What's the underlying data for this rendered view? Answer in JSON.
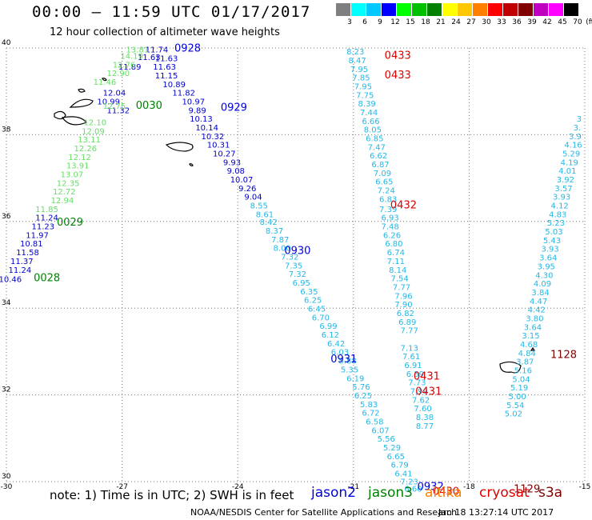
{
  "header": {
    "title": "00:00 – 11:59 UTC 01/17/2017",
    "subtitle": "12 hour collection of altimeter wave heights"
  },
  "legend": {
    "unit": "(ft)",
    "bins": [
      {
        "label": "3",
        "color": "#7f7f7f"
      },
      {
        "label": "6",
        "color": "#00ffff"
      },
      {
        "label": "9",
        "color": "#00c8ff"
      },
      {
        "label": "12",
        "color": "#0000ff"
      },
      {
        "label": "15",
        "color": "#00ff00"
      },
      {
        "label": "18",
        "color": "#00c000"
      },
      {
        "label": "21",
        "color": "#008000"
      },
      {
        "label": "24",
        "color": "#ffff00"
      },
      {
        "label": "27",
        "color": "#ffc800"
      },
      {
        "label": "30",
        "color": "#ff8000"
      },
      {
        "label": "33",
        "color": "#ff0000"
      },
      {
        "label": "36",
        "color": "#c00000"
      },
      {
        "label": "39",
        "color": "#800000"
      },
      {
        "label": "42",
        "color": "#c000c0"
      },
      {
        "label": "45",
        "color": "#ff00ff"
      },
      {
        "label": "70",
        "color": "#000000"
      }
    ]
  },
  "axes": {
    "lon_labels": [
      "-30",
      "-27",
      "-24",
      "-21",
      "-18",
      "-15"
    ],
    "lat_labels": [
      "40",
      "38",
      "36",
      "34",
      "32",
      "30"
    ],
    "lon_range": [
      -30,
      -15
    ],
    "lat_range": [
      30,
      40
    ]
  },
  "colors": {
    "jason2": "#0000dd",
    "jason3": "#008000",
    "altika": "#ff8000",
    "cryosat": "#dd0000",
    "s3a": "#800000",
    "light_green": "#66dd66",
    "cyan": "#22c8f0"
  },
  "tracks": [
    {
      "sat": "jason2",
      "color": "#0000cc",
      "points": [
        {
          "lon": -29.9,
          "lat": 34.6,
          "v": "10.46"
        },
        {
          "lon": -29.65,
          "lat": 34.82,
          "v": "11.24"
        },
        {
          "lon": -29.6,
          "lat": 35.02,
          "v": "11.37"
        },
        {
          "lon": -29.45,
          "lat": 35.22,
          "v": "11.58"
        },
        {
          "lon": -29.35,
          "lat": 35.42,
          "v": "10.81"
        },
        {
          "lon": -29.2,
          "lat": 35.62,
          "v": "11.97"
        },
        {
          "lon": -29.05,
          "lat": 35.82,
          "v": "11.23"
        },
        {
          "lon": -28.95,
          "lat": 36.02,
          "v": "11.24"
        },
        {
          "lon": -27.1,
          "lat": 38.5,
          "v": "11.32"
        },
        {
          "lon": -27.35,
          "lat": 38.7,
          "v": "10.99"
        },
        {
          "lon": -27.2,
          "lat": 38.9,
          "v": "12.04"
        },
        {
          "lon": -26.8,
          "lat": 39.5,
          "v": "11.89"
        },
        {
          "lon": -26.3,
          "lat": 39.72,
          "v": "11.63"
        },
        {
          "lon": -26.1,
          "lat": 39.9,
          "v": "11.74"
        },
        {
          "lon": -25.85,
          "lat": 39.7,
          "v": "11.63"
        },
        {
          "lon": -25.9,
          "lat": 39.5,
          "v": "11.63"
        },
        {
          "lon": -25.85,
          "lat": 39.3,
          "v": "11.15"
        },
        {
          "lon": -25.65,
          "lat": 39.1,
          "v": "10.89"
        },
        {
          "lon": -25.4,
          "lat": 38.9,
          "v": "11.82"
        },
        {
          "lon": -25.15,
          "lat": 38.7,
          "v": "10.97"
        },
        {
          "lon": -25.05,
          "lat": 38.5,
          "v": "9.89"
        },
        {
          "lon": -24.95,
          "lat": 38.3,
          "v": "10.13"
        },
        {
          "lon": -24.8,
          "lat": 38.1,
          "v": "10.14"
        },
        {
          "lon": -24.65,
          "lat": 37.9,
          "v": "10.32"
        },
        {
          "lon": -24.5,
          "lat": 37.7,
          "v": "10.31"
        },
        {
          "lon": -24.35,
          "lat": 37.5,
          "v": "10.27"
        },
        {
          "lon": -24.15,
          "lat": 37.3,
          "v": "9.93"
        },
        {
          "lon": -24.05,
          "lat": 37.1,
          "v": "9.08"
        },
        {
          "lon": -23.9,
          "lat": 36.9,
          "v": "10.07"
        },
        {
          "lon": -23.75,
          "lat": 36.7,
          "v": "9.26"
        },
        {
          "lon": -23.6,
          "lat": 36.5,
          "v": "9.04"
        }
      ]
    },
    {
      "sat": "jason3",
      "color": "#66dd66",
      "points": [
        {
          "lon": -28.95,
          "lat": 36.22,
          "v": "11.85"
        },
        {
          "lon": -28.55,
          "lat": 36.42,
          "v": "12.94"
        },
        {
          "lon": -28.5,
          "lat": 36.62,
          "v": "12.72"
        },
        {
          "lon": -28.4,
          "lat": 36.82,
          "v": "12.35"
        },
        {
          "lon": -28.3,
          "lat": 37.02,
          "v": "13.07"
        },
        {
          "lon": -28.15,
          "lat": 37.22,
          "v": "13.91"
        },
        {
          "lon": -28.1,
          "lat": 37.42,
          "v": "12.12"
        },
        {
          "lon": -27.95,
          "lat": 37.62,
          "v": "12.26"
        },
        {
          "lon": -27.85,
          "lat": 37.82,
          "v": "13.11"
        },
        {
          "lon": -27.75,
          "lat": 38.02,
          "v": "12.09"
        },
        {
          "lon": -27.7,
          "lat": 38.22,
          "v": "12.10"
        },
        {
          "lon": -27.45,
          "lat": 39.15,
          "v": "11.46"
        },
        {
          "lon": -27.2,
          "lat": 38.6,
          "v": "12.75"
        },
        {
          "lon": -27.1,
          "lat": 39.35,
          "v": "12.90"
        },
        {
          "lon": -26.95,
          "lat": 39.55,
          "v": "12.76"
        },
        {
          "lon": -26.75,
          "lat": 39.75,
          "v": "14.19"
        },
        {
          "lon": -26.6,
          "lat": 39.9,
          "v": "13.81"
        }
      ]
    },
    {
      "sat": "jason2-cyan",
      "color": "#22b8e8",
      "points": [
        {
          "lon": -23.45,
          "lat": 36.3,
          "v": "8.55"
        },
        {
          "lon": -23.3,
          "lat": 36.1,
          "v": "8.61"
        },
        {
          "lon": -23.2,
          "lat": 35.92,
          "v": "8.42"
        },
        {
          "lon": -23.05,
          "lat": 35.72,
          "v": "8.37"
        },
        {
          "lon": -22.9,
          "lat": 35.52,
          "v": "7.87"
        },
        {
          "lon": -22.85,
          "lat": 35.32,
          "v": "8.00"
        },
        {
          "lon": -22.65,
          "lat": 35.12,
          "v": "7.32"
        },
        {
          "lon": -22.55,
          "lat": 34.92,
          "v": "7.35"
        },
        {
          "lon": -22.45,
          "lat": 34.72,
          "v": "7.32"
        },
        {
          "lon": -22.35,
          "lat": 34.52,
          "v": "6.95"
        },
        {
          "lon": -22.15,
          "lat": 34.32,
          "v": "6.35"
        },
        {
          "lon": -22.05,
          "lat": 34.12,
          "v": "6.25"
        },
        {
          "lon": -21.95,
          "lat": 33.92,
          "v": "6.45"
        },
        {
          "lon": -21.85,
          "lat": 33.72,
          "v": "6.70"
        },
        {
          "lon": -21.65,
          "lat": 33.52,
          "v": "6.99"
        },
        {
          "lon": -21.6,
          "lat": 33.32,
          "v": "6.12"
        },
        {
          "lon": -21.45,
          "lat": 33.12,
          "v": "6.42"
        },
        {
          "lon": -21.35,
          "lat": 32.92,
          "v": "6.03"
        },
        {
          "lon": -21.15,
          "lat": 32.72,
          "v": "5.88"
        },
        {
          "lon": -21.1,
          "lat": 32.52,
          "v": "5.35"
        },
        {
          "lon": -20.95,
          "lat": 32.32,
          "v": "6.19"
        },
        {
          "lon": -20.8,
          "lat": 32.12,
          "v": "5.76"
        },
        {
          "lon": -20.75,
          "lat": 31.92,
          "v": "6.25"
        },
        {
          "lon": -20.6,
          "lat": 31.72,
          "v": "5.83"
        },
        {
          "lon": -20.55,
          "lat": 31.52,
          "v": "6.72"
        },
        {
          "lon": -20.45,
          "lat": 31.32,
          "v": "6.58"
        },
        {
          "lon": -20.3,
          "lat": 31.12,
          "v": "6.07"
        },
        {
          "lon": -20.15,
          "lat": 30.92,
          "v": "5.56"
        },
        {
          "lon": -20.0,
          "lat": 30.72,
          "v": "5.29"
        },
        {
          "lon": -19.9,
          "lat": 30.52,
          "v": "6.65"
        },
        {
          "lon": -19.8,
          "lat": 30.32,
          "v": "6.79"
        },
        {
          "lon": -19.7,
          "lat": 30.12,
          "v": "6.41"
        },
        {
          "lon": -19.55,
          "lat": 29.94,
          "v": "7.23"
        },
        {
          "lon": -19.45,
          "lat": 29.77,
          "v": "6.60"
        }
      ]
    },
    {
      "sat": "cyan-north",
      "color": "#22b8e8",
      "points": [
        {
          "lon": -20.95,
          "lat": 39.85,
          "v": "8.23"
        },
        {
          "lon": -20.9,
          "lat": 39.65,
          "v": "8.47"
        },
        {
          "lon": -20.85,
          "lat": 39.45,
          "v": "7.95"
        },
        {
          "lon": -20.8,
          "lat": 39.25,
          "v": "7.85"
        },
        {
          "lon": -20.75,
          "lat": 39.05,
          "v": "7.95"
        },
        {
          "lon": -20.7,
          "lat": 38.85,
          "v": "7.75"
        },
        {
          "lon": -20.65,
          "lat": 38.65,
          "v": "8.39"
        },
        {
          "lon": -20.6,
          "lat": 38.45,
          "v": "7.44"
        },
        {
          "lon": -20.55,
          "lat": 38.25,
          "v": "6.66"
        },
        {
          "lon": -20.5,
          "lat": 38.05,
          "v": "8.05"
        },
        {
          "lon": -20.45,
          "lat": 37.85,
          "v": "6.85"
        },
        {
          "lon": -20.4,
          "lat": 37.65,
          "v": "7.47"
        },
        {
          "lon": -20.35,
          "lat": 37.45,
          "v": "6.62"
        },
        {
          "lon": -20.3,
          "lat": 37.25,
          "v": "6.87"
        },
        {
          "lon": -20.25,
          "lat": 37.05,
          "v": "7.09"
        },
        {
          "lon": -20.2,
          "lat": 36.85,
          "v": "6.65"
        },
        {
          "lon": -20.15,
          "lat": 36.65,
          "v": "7.24"
        },
        {
          "lon": -20.1,
          "lat": 36.45,
          "v": "6.83"
        },
        {
          "lon": -20.1,
          "lat": 36.22,
          "v": "7.39"
        },
        {
          "lon": -20.05,
          "lat": 36.02,
          "v": "6.93"
        },
        {
          "lon": -20.05,
          "lat": 35.82,
          "v": "7.48"
        },
        {
          "lon": -20.0,
          "lat": 35.62,
          "v": "6.26"
        },
        {
          "lon": -19.95,
          "lat": 35.42,
          "v": "6.80"
        },
        {
          "lon": -19.9,
          "lat": 35.22,
          "v": "6.74"
        },
        {
          "lon": -19.9,
          "lat": 35.02,
          "v": "7.11"
        },
        {
          "lon": -19.85,
          "lat": 34.82,
          "v": "8.14"
        },
        {
          "lon": -19.8,
          "lat": 34.62,
          "v": "7.54"
        },
        {
          "lon": -19.75,
          "lat": 34.42,
          "v": "7.77"
        },
        {
          "lon": -19.7,
          "lat": 34.22,
          "v": "7.96"
        },
        {
          "lon": -19.7,
          "lat": 34.02,
          "v": "7.90"
        },
        {
          "lon": -19.65,
          "lat": 33.82,
          "v": "6.82"
        },
        {
          "lon": -19.6,
          "lat": 33.62,
          "v": "6.89"
        },
        {
          "lon": -19.55,
          "lat": 33.42,
          "v": "7.77"
        },
        {
          "lon": -19.55,
          "lat": 33.02,
          "v": "7.13"
        },
        {
          "lon": -19.5,
          "lat": 32.82,
          "v": "7.61"
        },
        {
          "lon": -19.45,
          "lat": 32.62,
          "v": "6.91"
        },
        {
          "lon": -19.4,
          "lat": 32.42,
          "v": "6.59"
        },
        {
          "lon": -19.35,
          "lat": 32.22,
          "v": "7.73"
        },
        {
          "lon": -19.3,
          "lat": 32.02,
          "v": "7.99"
        },
        {
          "lon": -19.25,
          "lat": 31.82,
          "v": "7.62"
        },
        {
          "lon": -19.2,
          "lat": 31.62,
          "v": "7.60"
        },
        {
          "lon": -19.15,
          "lat": 31.42,
          "v": "8.38"
        },
        {
          "lon": -19.15,
          "lat": 31.22,
          "v": "8.77"
        }
      ]
    },
    {
      "sat": "cyan-east",
      "color": "#22b8e8",
      "points": [
        {
          "lon": -15.15,
          "lat": 38.3,
          "v": "3"
        },
        {
          "lon": -15.2,
          "lat": 38.1,
          "v": "3."
        },
        {
          "lon": -15.25,
          "lat": 37.9,
          "v": "3.9"
        },
        {
          "lon": -15.3,
          "lat": 37.7,
          "v": "4.16"
        },
        {
          "lon": -15.35,
          "lat": 37.5,
          "v": "5.29"
        },
        {
          "lon": -15.4,
          "lat": 37.3,
          "v": "4.19"
        },
        {
          "lon": -15.45,
          "lat": 37.1,
          "v": "4.01"
        },
        {
          "lon": -15.5,
          "lat": 36.9,
          "v": "3.92"
        },
        {
          "lon": -15.55,
          "lat": 36.7,
          "v": "3.57"
        },
        {
          "lon": -15.6,
          "lat": 36.5,
          "v": "3.93"
        },
        {
          "lon": -15.65,
          "lat": 36.3,
          "v": "4.12"
        },
        {
          "lon": -15.7,
          "lat": 36.1,
          "v": "4.83"
        },
        {
          "lon": -15.75,
          "lat": 35.9,
          "v": "5.23"
        },
        {
          "lon": -15.8,
          "lat": 35.7,
          "v": "5.03"
        },
        {
          "lon": -15.85,
          "lat": 35.5,
          "v": "5.43"
        },
        {
          "lon": -15.9,
          "lat": 35.3,
          "v": "3.93"
        },
        {
          "lon": -15.95,
          "lat": 35.1,
          "v": "3.64"
        },
        {
          "lon": -16.0,
          "lat": 34.9,
          "v": "3.95"
        },
        {
          "lon": -16.05,
          "lat": 34.7,
          "v": "4.30"
        },
        {
          "lon": -16.1,
          "lat": 34.5,
          "v": "4.09"
        },
        {
          "lon": -16.15,
          "lat": 34.3,
          "v": "3.84"
        },
        {
          "lon": -16.2,
          "lat": 34.1,
          "v": "4.47"
        },
        {
          "lon": -16.25,
          "lat": 33.9,
          "v": "4.42"
        },
        {
          "lon": -16.3,
          "lat": 33.7,
          "v": "3.80"
        },
        {
          "lon": -16.35,
          "lat": 33.5,
          "v": "3.64"
        },
        {
          "lon": -16.4,
          "lat": 33.3,
          "v": "3.15"
        },
        {
          "lon": -16.45,
          "lat": 33.1,
          "v": "4.68"
        },
        {
          "lon": -16.5,
          "lat": 32.9,
          "v": "4.84"
        },
        {
          "lon": -16.55,
          "lat": 32.7,
          "v": "3.87"
        },
        {
          "lon": -16.6,
          "lat": 32.5,
          "v": "5.16"
        },
        {
          "lon": -16.65,
          "lat": 32.3,
          "v": "5.04"
        },
        {
          "lon": -16.7,
          "lat": 32.1,
          "v": "5.19"
        },
        {
          "lon": -16.75,
          "lat": 31.9,
          "v": "5.00"
        },
        {
          "lon": -16.8,
          "lat": 31.7,
          "v": "5.54"
        },
        {
          "lon": -16.85,
          "lat": 31.5,
          "v": "5.02"
        }
      ]
    }
  ],
  "time_labels": [
    {
      "lon": -28.95,
      "lat": 34.62,
      "text": "0028",
      "sat": "jason3"
    },
    {
      "lon": -28.35,
      "lat": 35.9,
      "text": "0029",
      "sat": "jason3"
    },
    {
      "lon": -26.3,
      "lat": 38.6,
      "text": "0030",
      "sat": "jason3"
    },
    {
      "lon": -25.3,
      "lat": 39.92,
      "text": "0928",
      "sat": "jason2"
    },
    {
      "lon": -24.1,
      "lat": 38.55,
      "text": "0929",
      "sat": "jason2"
    },
    {
      "lon": -22.45,
      "lat": 35.25,
      "text": "0930",
      "sat": "jason2"
    },
    {
      "lon": -21.25,
      "lat": 32.75,
      "text": "0931",
      "sat": "jason2"
    },
    {
      "lon": -19.0,
      "lat": 29.81,
      "text": "0932",
      "sat": "jason2"
    },
    {
      "lon": -19.85,
      "lat": 39.75,
      "text": "0433",
      "sat": "cryosat"
    },
    {
      "lon": -19.85,
      "lat": 39.3,
      "text": "0433",
      "sat": "cryosat"
    },
    {
      "lon": -19.7,
      "lat": 36.3,
      "text": "0432",
      "sat": "cryosat"
    },
    {
      "lon": -19.1,
      "lat": 32.35,
      "text": "0431",
      "sat": "cryosat"
    },
    {
      "lon": -19.05,
      "lat": 32.0,
      "text": "0431",
      "sat": "cryosat"
    },
    {
      "lon": -18.6,
      "lat": 29.7,
      "text": "0430",
      "sat": "cryosat"
    },
    {
      "lon": -15.55,
      "lat": 32.85,
      "text": "1128",
      "sat": "s3a"
    },
    {
      "lon": -16.5,
      "lat": 29.75,
      "text": "1129",
      "sat": "s3a"
    }
  ],
  "footer": {
    "note": "note:  1) Time is in UTC; 2) SWH is in feet",
    "satellites": [
      "jason2",
      "jason3",
      "altika",
      "cryosat",
      "s3a"
    ],
    "credit": "NOAA/NESDIS Center for Satellite Applications and Research",
    "stamp": "Jan 18 13:27:14 UTC 2017"
  }
}
